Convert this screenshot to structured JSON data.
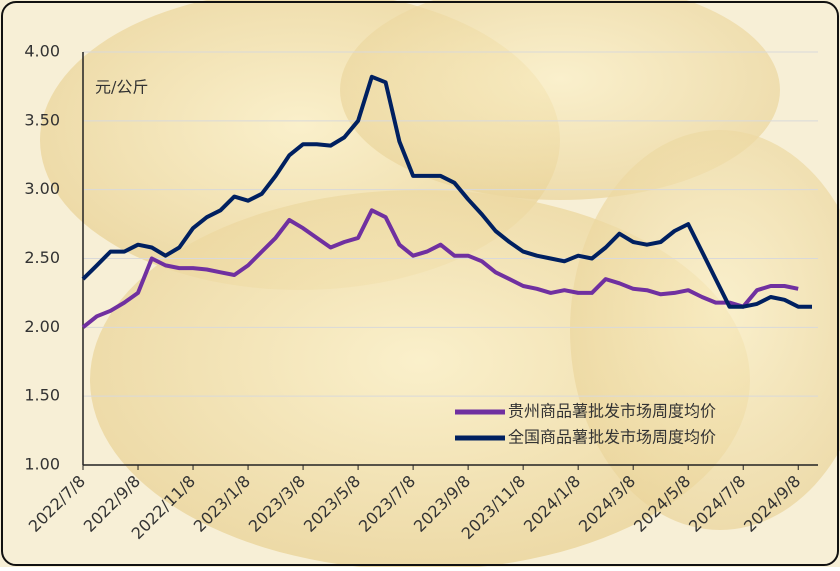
{
  "chart_data": {
    "type": "line",
    "annotation": "元/公斤",
    "categories": [
      "2022/7/8",
      null,
      null,
      null,
      "2022/9/8",
      null,
      null,
      null,
      "2022/11/8",
      null,
      null,
      null,
      "2023/1/8",
      null,
      null,
      null,
      "2023/3/8",
      null,
      null,
      null,
      "2023/5/8",
      null,
      null,
      null,
      "2023/7/8",
      null,
      null,
      null,
      "2023/9/8",
      null,
      null,
      null,
      "2023/11/8",
      null,
      null,
      null,
      "2024/1/8",
      null,
      null,
      null,
      "2024/3/8",
      null,
      null,
      null,
      "2024/5/8",
      null,
      null,
      null,
      "2024/7/8",
      null,
      null,
      null,
      "2024/9/8",
      null
    ],
    "series": [
      {
        "name": "贵州商品薯批发市场周度均价",
        "color": "#7030a0",
        "values": [
          2.0,
          2.08,
          2.12,
          2.18,
          2.25,
          2.5,
          2.45,
          2.43,
          2.43,
          2.42,
          2.4,
          2.38,
          2.45,
          2.55,
          2.65,
          2.78,
          2.72,
          2.65,
          2.58,
          2.62,
          2.65,
          2.85,
          2.8,
          2.6,
          2.52,
          2.55,
          2.6,
          2.52,
          2.52,
          2.48,
          2.4,
          2.35,
          2.3,
          2.28,
          2.25,
          2.27,
          2.25,
          2.25,
          2.35,
          2.32,
          2.28,
          2.27,
          2.24,
          2.25,
          2.27,
          2.22,
          2.18,
          2.18,
          2.15,
          2.27,
          2.3,
          2.3,
          2.28,
          null
        ]
      },
      {
        "name": "全国商品薯批发市场周度均价",
        "color": "#002060",
        "values": [
          2.35,
          2.45,
          2.55,
          2.55,
          2.6,
          2.58,
          2.52,
          2.58,
          2.72,
          2.8,
          2.85,
          2.95,
          2.92,
          2.97,
          3.1,
          3.25,
          3.33,
          3.33,
          3.32,
          3.38,
          3.5,
          3.82,
          3.78,
          3.35,
          3.1,
          3.1,
          3.1,
          3.05,
          2.93,
          2.82,
          2.7,
          2.62,
          2.55,
          2.52,
          2.5,
          2.48,
          2.52,
          2.5,
          2.58,
          2.68,
          2.62,
          2.6,
          2.62,
          2.7,
          2.75,
          2.55,
          2.35,
          2.15,
          2.15,
          2.17,
          2.22,
          2.2,
          2.15,
          2.15
        ]
      }
    ],
    "ylim": [
      1,
      4
    ],
    "yticks": [
      {
        "value": 1,
        "label": "1.00"
      },
      {
        "value": 1.5,
        "label": "1.50"
      },
      {
        "value": 2,
        "label": "2.00"
      },
      {
        "value": 2.5,
        "label": "2.50"
      },
      {
        "value": 3,
        "label": "3.00"
      },
      {
        "value": 3.5,
        "label": "3.50"
      },
      {
        "value": 4,
        "label": "4.00"
      }
    ],
    "grid": true
  }
}
